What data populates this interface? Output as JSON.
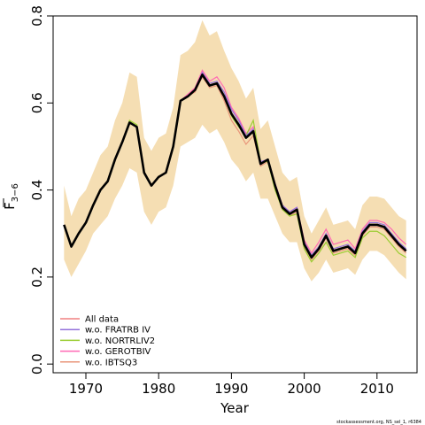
{
  "chart_data": {
    "type": "line",
    "xlabel": "Year",
    "ylabel": "F",
    "ylabel_sub": "3−6",
    "xlim": [
      1965.5,
      2015.5
    ],
    "ylim": [
      -0.02,
      0.8
    ],
    "xticks": [
      1970,
      1980,
      1990,
      2000,
      2010
    ],
    "yticks": [
      0.0,
      0.2,
      0.4,
      0.6,
      0.8
    ],
    "ytick_labels": [
      "0.0",
      "0.2",
      "0.4",
      "0.6",
      "0.8"
    ],
    "grid": false,
    "legend_position": "bottom-left",
    "credit": "stockassessment.org, NS_sel_1, r6384",
    "x": [
      1967,
      1968,
      1969,
      1970,
      1971,
      1972,
      1973,
      1974,
      1975,
      1976,
      1977,
      1978,
      1979,
      1980,
      1981,
      1982,
      1983,
      1984,
      1985,
      1986,
      1987,
      1988,
      1989,
      1990,
      1991,
      1992,
      1993,
      1994,
      1995,
      1996,
      1997,
      1998,
      1999,
      2000,
      2001,
      2002,
      2003,
      2004,
      2005,
      2006,
      2007,
      2008,
      2009,
      2010,
      2011,
      2012,
      2013,
      2014
    ],
    "band": {
      "color": "#f5deb3",
      "lower": [
        0.24,
        0.2,
        0.23,
        0.26,
        0.3,
        0.32,
        0.34,
        0.38,
        0.41,
        0.45,
        0.44,
        0.35,
        0.32,
        0.35,
        0.36,
        0.41,
        0.5,
        0.51,
        0.52,
        0.55,
        0.53,
        0.54,
        0.51,
        0.47,
        0.45,
        0.42,
        0.44,
        0.38,
        0.38,
        0.34,
        0.3,
        0.28,
        0.28,
        0.22,
        0.19,
        0.21,
        0.24,
        0.21,
        0.215,
        0.22,
        0.205,
        0.24,
        0.26,
        0.26,
        0.25,
        0.23,
        0.21,
        0.195
      ],
      "upper": [
        0.41,
        0.34,
        0.38,
        0.4,
        0.44,
        0.48,
        0.5,
        0.56,
        0.6,
        0.67,
        0.66,
        0.52,
        0.49,
        0.52,
        0.53,
        0.59,
        0.71,
        0.72,
        0.74,
        0.79,
        0.755,
        0.765,
        0.72,
        0.68,
        0.65,
        0.61,
        0.635,
        0.54,
        0.56,
        0.5,
        0.44,
        0.42,
        0.43,
        0.34,
        0.3,
        0.33,
        0.36,
        0.32,
        0.325,
        0.33,
        0.31,
        0.365,
        0.385,
        0.385,
        0.38,
        0.36,
        0.34,
        0.33
      ]
    },
    "main": {
      "color": "#000000",
      "values": [
        0.32,
        0.27,
        0.3,
        0.325,
        0.365,
        0.4,
        0.42,
        0.47,
        0.51,
        0.555,
        0.545,
        0.44,
        0.41,
        0.43,
        0.44,
        0.5,
        0.605,
        0.615,
        0.63,
        0.665,
        0.64,
        0.645,
        0.615,
        0.575,
        0.55,
        0.52,
        0.535,
        0.46,
        0.47,
        0.41,
        0.36,
        0.345,
        0.355,
        0.275,
        0.245,
        0.265,
        0.295,
        0.26,
        0.265,
        0.27,
        0.255,
        0.3,
        0.32,
        0.32,
        0.315,
        0.295,
        0.275,
        0.26
      ]
    },
    "series": [
      {
        "name": "All data",
        "color": "#f08080",
        "values": [
          0.32,
          0.27,
          0.3,
          0.325,
          0.365,
          0.4,
          0.42,
          0.47,
          0.51,
          0.555,
          0.545,
          0.44,
          0.41,
          0.43,
          0.44,
          0.5,
          0.605,
          0.615,
          0.63,
          0.665,
          0.64,
          0.645,
          0.615,
          0.575,
          0.55,
          0.52,
          0.535,
          0.46,
          0.47,
          0.41,
          0.36,
          0.345,
          0.355,
          0.275,
          0.245,
          0.265,
          0.295,
          0.26,
          0.265,
          0.27,
          0.255,
          0.3,
          0.32,
          0.32,
          0.315,
          0.295,
          0.275,
          0.26
        ]
      },
      {
        "name": "w.o. FRATRB IV",
        "color": "#9370db",
        "values": [
          0.32,
          0.27,
          0.3,
          0.325,
          0.365,
          0.4,
          0.42,
          0.47,
          0.51,
          0.555,
          0.545,
          0.44,
          0.41,
          0.43,
          0.44,
          0.5,
          0.605,
          0.615,
          0.63,
          0.67,
          0.645,
          0.65,
          0.625,
          0.585,
          0.56,
          0.525,
          0.54,
          0.465,
          0.47,
          0.415,
          0.365,
          0.35,
          0.36,
          0.28,
          0.25,
          0.27,
          0.3,
          0.265,
          0.27,
          0.275,
          0.26,
          0.305,
          0.325,
          0.325,
          0.32,
          0.3,
          0.28,
          0.265
        ]
      },
      {
        "name": "w.o. NORTRLIV2",
        "color": "#9acd32",
        "values": [
          0.32,
          0.27,
          0.3,
          0.325,
          0.365,
          0.4,
          0.42,
          0.47,
          0.51,
          0.56,
          0.55,
          0.44,
          0.41,
          0.43,
          0.44,
          0.5,
          0.605,
          0.615,
          0.63,
          0.665,
          0.64,
          0.645,
          0.615,
          0.57,
          0.545,
          0.525,
          0.56,
          0.465,
          0.465,
          0.4,
          0.355,
          0.34,
          0.345,
          0.265,
          0.235,
          0.255,
          0.28,
          0.25,
          0.255,
          0.26,
          0.245,
          0.29,
          0.305,
          0.305,
          0.295,
          0.275,
          0.255,
          0.245
        ]
      },
      {
        "name": "w.o. GEROTBIV",
        "color": "#ff69b4",
        "values": [
          0.32,
          0.27,
          0.3,
          0.325,
          0.365,
          0.4,
          0.42,
          0.47,
          0.51,
          0.555,
          0.545,
          0.44,
          0.41,
          0.43,
          0.44,
          0.5,
          0.605,
          0.62,
          0.635,
          0.675,
          0.65,
          0.66,
          0.635,
          0.59,
          0.565,
          0.53,
          0.545,
          0.465,
          0.47,
          0.415,
          0.365,
          0.35,
          0.36,
          0.285,
          0.255,
          0.28,
          0.31,
          0.275,
          0.28,
          0.285,
          0.265,
          0.31,
          0.33,
          0.33,
          0.325,
          0.31,
          0.29,
          0.275
        ]
      },
      {
        "name": "w.o. IBTSQ3",
        "color": "#e9967a",
        "values": [
          0.32,
          0.27,
          0.3,
          0.325,
          0.365,
          0.4,
          0.42,
          0.47,
          0.51,
          0.555,
          0.545,
          0.44,
          0.41,
          0.43,
          0.44,
          0.5,
          0.605,
          0.615,
          0.625,
          0.66,
          0.635,
          0.64,
          0.605,
          0.56,
          0.535,
          0.505,
          0.525,
          0.455,
          0.465,
          0.405,
          0.355,
          0.34,
          0.35,
          0.27,
          0.24,
          0.26,
          0.29,
          0.255,
          0.26,
          0.265,
          0.25,
          0.295,
          0.315,
          0.315,
          0.31,
          0.29,
          0.27,
          0.255
        ]
      }
    ]
  }
}
